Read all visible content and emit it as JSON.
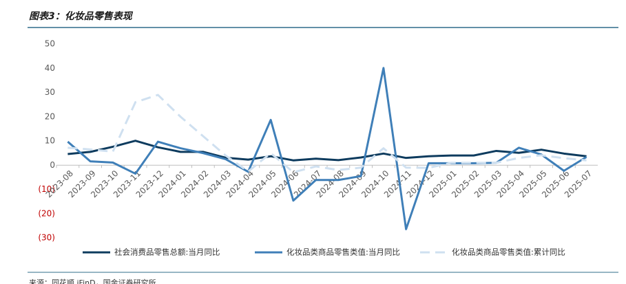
{
  "chart_data": {
    "type": "line",
    "title": "图表3：化妆品零售表现",
    "source": "来源：同花顺 iFinD，国金证券研究所",
    "categories": [
      "2023-08",
      "2023-09",
      "2023-10",
      "2023-11",
      "2023-12",
      "2024-01",
      "2024-02",
      "2024-03",
      "2024-04",
      "2024-05",
      "2024-06",
      "2024-07",
      "2024-08",
      "2024-09",
      "2024-10",
      "2024-11",
      "2024-12",
      "2025-01",
      "2025-02",
      "2025-03",
      "2025-04",
      "2025-05",
      "2025-06",
      "2025-07"
    ],
    "series": [
      {
        "name": "社会消费品零售总额:当月同比",
        "color": "#0d3b5e",
        "dash": false,
        "values": [
          4.6,
          5.5,
          7.6,
          10.1,
          7.4,
          5.5,
          5.5,
          3.1,
          2.3,
          3.7,
          2.0,
          2.7,
          2.1,
          3.2,
          4.8,
          3.0,
          3.7,
          4.0,
          4.0,
          5.9,
          5.1,
          6.4,
          4.8,
          3.7
        ]
      },
      {
        "name": "化妆品类商品零售类值:当月同比",
        "color": "#3f7fb8",
        "dash": false,
        "values": [
          9.7,
          1.6,
          1.1,
          -3.5,
          9.7,
          7.0,
          5.0,
          2.5,
          -2.7,
          18.7,
          -14.6,
          -6.1,
          -6.1,
          -4.5,
          40.1,
          -26.4,
          0.8,
          0.8,
          0.8,
          1.0,
          7.2,
          4.4,
          -2.3,
          3.4
        ]
      },
      {
        "name": "化妆品类商品零售类值:累计同比",
        "color": "#cfe0f0",
        "dash": true,
        "values": [
          7.2,
          6.5,
          5.6,
          26.0,
          29.0,
          20.0,
          12.0,
          4.0,
          -2.6,
          5.0,
          -2.9,
          -0.5,
          -2.0,
          -1.0,
          7.0,
          -1.0,
          -1.1,
          1.0,
          1.0,
          1.0,
          3.0,
          4.1,
          2.9,
          2.0
        ]
      }
    ],
    "ylim": [
      -30,
      50
    ],
    "yticks": [
      {
        "value": -30,
        "label": "(30)"
      },
      {
        "value": -20,
        "label": "(20)"
      },
      {
        "value": -10,
        "label": "(10)"
      },
      0,
      10,
      20,
      30,
      40,
      50
    ],
    "negative_tick_color": "#c00000",
    "grid": false,
    "legend": "bottom"
  }
}
